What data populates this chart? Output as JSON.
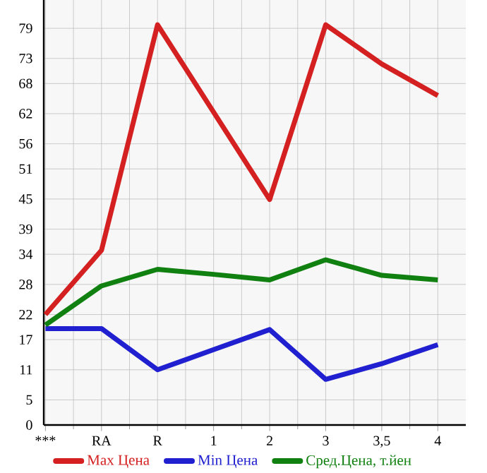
{
  "chart_data": {
    "type": "line",
    "categories": [
      "***",
      "RA",
      "R",
      "1",
      "2",
      "3",
      "3,5",
      "4"
    ],
    "series": [
      {
        "name": "Max Цена",
        "color": "#d42020",
        "values": [
          22.0,
          34.8,
          79.7,
          62.3,
          44.9,
          79.7,
          71.9,
          65.6
        ]
      },
      {
        "name": "Min Цена",
        "color": "#2020d0",
        "values": [
          19.2,
          19.2,
          11.0,
          15.0,
          19.0,
          9.1,
          12.2,
          16.0
        ]
      },
      {
        "name": "Сред.Цена, т.йен",
        "color": "#108010",
        "values": [
          19.9,
          27.7,
          31.0,
          30.0,
          28.9,
          32.9,
          29.8,
          28.9
        ]
      }
    ],
    "ylim": [
      0,
      84.64
    ],
    "yticks": [
      0,
      5,
      11,
      17,
      22,
      28,
      34,
      39,
      45,
      51,
      56,
      62,
      68,
      73,
      79
    ],
    "grid": true,
    "legend": "bottom",
    "marker": "none",
    "line_style": "solid"
  }
}
